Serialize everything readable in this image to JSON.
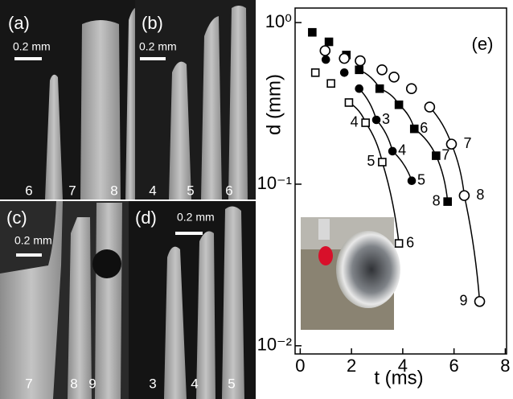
{
  "image_panels": [
    {
      "label": "(a)",
      "scale_bar": "0.2 mm",
      "frames": [
        6,
        7,
        8
      ]
    },
    {
      "label": "(b)",
      "scale_bar": "0.2 mm",
      "frames": [
        4,
        5,
        6
      ]
    },
    {
      "label": "(c)",
      "scale_bar": "0.2 mm",
      "frames": [
        7,
        8,
        9
      ]
    },
    {
      "label": "(d)",
      "scale_bar": "0.2 mm",
      "frames": [
        3,
        4,
        5
      ]
    }
  ],
  "chart_data": {
    "type": "scatter",
    "annotation": "(e)",
    "x_label": "t (ms)",
    "y_label": "d (mm)",
    "xlim": [
      -0.2,
      8.05
    ],
    "xticks": [
      0,
      2,
      4,
      6,
      8
    ],
    "ylim": [
      0.0089,
      1.23
    ],
    "y_log": true,
    "yticks": [
      {
        "value": 0.01,
        "label": "10⁻²"
      },
      {
        "value": 0.1,
        "label": "10⁻¹"
      },
      {
        "value": 1,
        "label": "10⁰"
      }
    ],
    "series": [
      {
        "marker": "square",
        "filled": true,
        "color": "#000000",
        "x": [
          0.47,
          1.12,
          1.8,
          2.3,
          3.1,
          3.85,
          4.45,
          5.3,
          5.75
        ],
        "values": [
          0.87,
          0.76,
          0.63,
          0.51,
          0.39,
          0.31,
          0.22,
          0.15,
          0.078
        ],
        "point_labels": [
          null,
          null,
          null,
          null,
          null,
          null,
          6,
          7,
          8
        ],
        "curve_from": 3
      },
      {
        "marker": "circle",
        "filled": true,
        "color": "#000000",
        "x": [
          1.0,
          1.72,
          2.3,
          2.97,
          3.6,
          4.35
        ],
        "values": [
          0.59,
          0.49,
          0.39,
          0.25,
          0.16,
          0.105
        ],
        "point_labels": [
          null,
          null,
          null,
          3,
          4,
          5
        ],
        "curve_from": 2
      },
      {
        "marker": "circle",
        "filled": false,
        "color": "#000000",
        "x": [
          0.97,
          1.72,
          2.34,
          3.19,
          3.66,
          4.34,
          5.05,
          5.9,
          6.4,
          7.0
        ],
        "values": [
          0.67,
          0.6,
          0.58,
          0.51,
          0.46,
          0.39,
          0.3,
          0.177,
          0.085,
          0.0188
        ],
        "point_labels": [
          null,
          null,
          null,
          null,
          null,
          null,
          null,
          7,
          8,
          9
        ],
        "curve_from": 6
      },
      {
        "marker": "square",
        "filled": false,
        "color": "#000000",
        "x": [
          0.59,
          1.2,
          1.9,
          2.55,
          3.2,
          3.85
        ],
        "values": [
          0.49,
          0.42,
          0.32,
          0.24,
          0.137,
          0.043
        ],
        "point_labels": [
          null,
          null,
          null,
          4,
          5,
          6
        ],
        "curve_from": 2
      }
    ]
  }
}
